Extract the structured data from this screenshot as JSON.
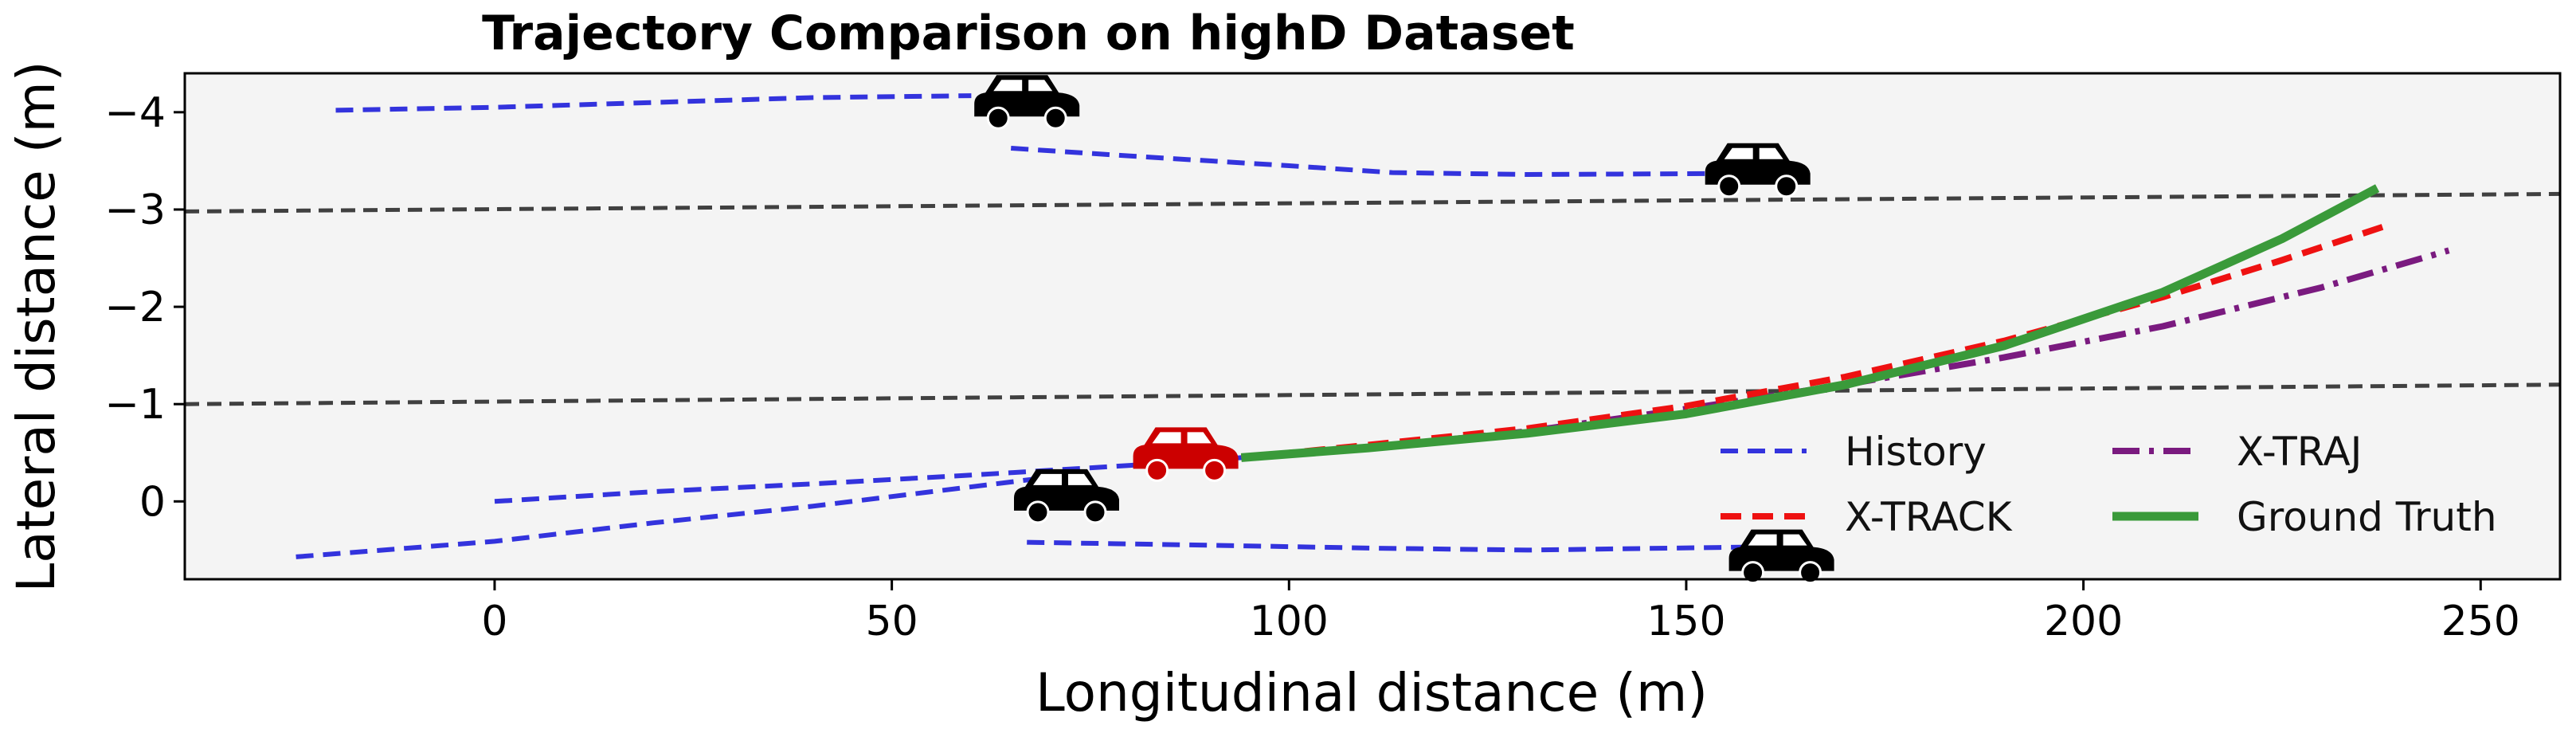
{
  "colors": {
    "plot_background": "#f4f4f4",
    "lane_lines": "#404040",
    "history": "#3333dd",
    "x_track": "#ee1111",
    "x_traj": "#7a1a7f",
    "ground_truth": "#3a9a3a",
    "ego_car": "#cc0000",
    "other_car": "#000000"
  },
  "chart_data": {
    "type": "line",
    "title": "Trajectory Comparison on highD Dataset",
    "xlabel": "Longitudinal distance (m)",
    "ylabel": "Lateral distance (m)",
    "xlim": [
      -39,
      260
    ],
    "ylim": [
      0.8,
      -4.4
    ],
    "y_inverted": true,
    "xticks": [
      0,
      50,
      100,
      150,
      200,
      250
    ],
    "xtick_labels": [
      "0",
      "50",
      "100",
      "150",
      "200",
      "250"
    ],
    "yticks": [
      -4,
      -3,
      -2,
      -1,
      0
    ],
    "ytick_labels": [
      "−4",
      "−3",
      "−2",
      "−1",
      "0"
    ],
    "grid": false,
    "legend_position": "lower-right",
    "lane_lines": [
      {
        "x": [
          -39,
          260
        ],
        "y": [
          -2.98,
          -3.16
        ]
      },
      {
        "x": [
          -39,
          260
        ],
        "y": [
          -1.0,
          -1.2
        ]
      }
    ],
    "series": [
      {
        "name": "History",
        "style": "dashed",
        "segments": [
          {
            "x": [
              -20,
              0,
              20,
              40,
              60
            ],
            "y": [
              -4.02,
              -4.05,
              -4.1,
              -4.15,
              -4.17
            ]
          },
          {
            "x": [
              65,
              80,
              100,
              113,
              130,
              155
            ],
            "y": [
              -3.63,
              -3.55,
              -3.45,
              -3.38,
              -3.36,
              -3.37
            ]
          },
          {
            "x": [
              0,
              20,
              40,
              60,
              80,
              94
            ],
            "y": [
              0.0,
              -0.1,
              -0.18,
              -0.27,
              -0.37,
              -0.45
            ]
          },
          {
            "x": [
              -25,
              0,
              20,
              40,
              70
            ],
            "y": [
              0.57,
              0.41,
              0.22,
              0.05,
              -0.25
            ]
          },
          {
            "x": [
              67,
              90,
              110,
              130,
              157
            ],
            "y": [
              0.42,
              0.45,
              0.48,
              0.5,
              0.47
            ]
          }
        ]
      },
      {
        "name": "X-TRACK",
        "style": "dashed",
        "x": [
          94,
          110,
          130,
          150,
          170,
          190,
          210,
          225,
          238
        ],
        "y": [
          -0.45,
          -0.58,
          -0.75,
          -0.98,
          -1.28,
          -1.65,
          -2.1,
          -2.48,
          -2.83
        ]
      },
      {
        "name": "X-TRAJ",
        "style": "dashdot",
        "x": [
          94,
          110,
          130,
          150,
          170,
          190,
          210,
          230,
          246
        ],
        "y": [
          -0.45,
          -0.55,
          -0.72,
          -0.95,
          -1.2,
          -1.48,
          -1.8,
          -2.2,
          -2.58
        ]
      },
      {
        "name": "Ground Truth",
        "style": "solid",
        "x": [
          94,
          110,
          130,
          150,
          170,
          190,
          210,
          225,
          237
        ],
        "y": [
          -0.45,
          -0.55,
          -0.7,
          -0.9,
          -1.2,
          -1.6,
          -2.15,
          -2.7,
          -3.22
        ]
      }
    ],
    "vehicles": [
      {
        "role": "ego",
        "x": 87,
        "y": -0.45
      },
      {
        "role": "other",
        "x": 67,
        "y": -4.07
      },
      {
        "role": "other",
        "x": 159,
        "y": -3.37
      },
      {
        "role": "other",
        "x": 72,
        "y": -0.02
      },
      {
        "role": "other",
        "x": 162,
        "y": 0.6
      }
    ]
  }
}
